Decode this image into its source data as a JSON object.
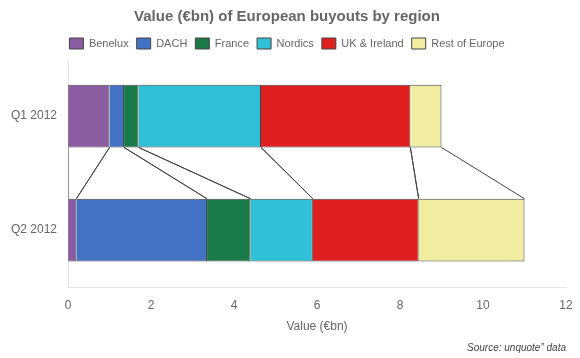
{
  "chart_data": {
    "type": "bar",
    "orientation": "horizontal",
    "stacked": true,
    "title": "Value (€bn) of European buyouts by region",
    "xlabel": "Value (€bn)",
    "annotation": "Source: unquote” data",
    "categories": [
      "Q1 2012",
      "Q2 2012"
    ],
    "series": [
      {
        "name": "Benelux",
        "color": "#8B5CA0",
        "values": [
          1.0,
          0.2
        ]
      },
      {
        "name": "DACH",
        "color": "#4472C4",
        "values": [
          0.35,
          3.15
        ]
      },
      {
        "name": "France",
        "color": "#1A7A4A",
        "values": [
          0.35,
          1.05
        ]
      },
      {
        "name": "Nordics",
        "color": "#30C0D8",
        "values": [
          2.95,
          1.5
        ]
      },
      {
        "name": "UK & Ireland",
        "color": "#E02020",
        "values": [
          3.6,
          2.55
        ]
      },
      {
        "name": "Rest of Europe",
        "color": "#F0ECA0",
        "values": [
          0.75,
          2.55
        ]
      }
    ],
    "xlim": [
      0,
      12
    ],
    "xticks": [
      0,
      2,
      4,
      6,
      8,
      10,
      12
    ],
    "grid": false,
    "legend": "top"
  }
}
